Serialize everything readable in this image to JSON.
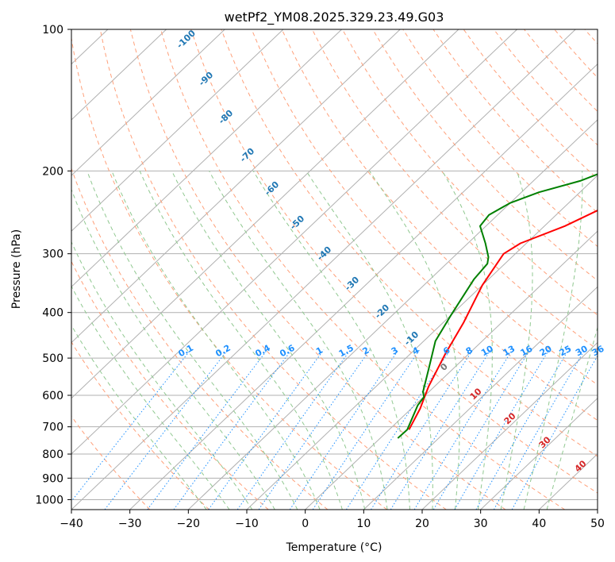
{
  "chart_data": {
    "type": "skew-t",
    "title": "wetPf2_YM08.2025.329.23.49.G03",
    "xlabel": "Temperature (°C)",
    "ylabel": "Pressure (hPa)",
    "xlim": [
      -40,
      50
    ],
    "ylim": [
      1050,
      100
    ],
    "x_ticks": [
      -40,
      -30,
      -20,
      -10,
      0,
      10,
      20,
      30,
      40,
      50
    ],
    "x_tick_labels": [
      "−40",
      "−30",
      "−20",
      "−10",
      "0",
      "10",
      "20",
      "30",
      "40",
      "50"
    ],
    "y_ticks": [
      100,
      200,
      300,
      400,
      500,
      600,
      700,
      800,
      900,
      1000
    ],
    "y_tick_labels": [
      "100",
      "200",
      "300",
      "400",
      "500",
      "600",
      "700",
      "800",
      "900",
      "1000"
    ],
    "colors": {
      "temperature": "#ff0000",
      "dewpoint": "#008000",
      "isotherm": "#b0b0b0",
      "dry_adiabat": "#ffa07a",
      "moist_adiabat": "#90c890",
      "mixing_ratio": "#1e90ff",
      "height_label": "#1f77b4",
      "surface_label": "#d62728",
      "zero_label": "#777777"
    },
    "series": [
      {
        "name": "Temperature",
        "points": [
          [
            3.4,
            710
          ],
          [
            1.5,
            640
          ],
          [
            -1,
            575
          ],
          [
            -4,
            490
          ],
          [
            -6.5,
            420
          ],
          [
            -10,
            350
          ],
          [
            -12,
            300
          ],
          [
            -11,
            285
          ],
          [
            -6.5,
            262
          ],
          [
            -3,
            238
          ],
          [
            -1,
            222
          ],
          [
            2.5,
            200
          ],
          [
            6,
            182
          ],
          [
            9,
            168
          ],
          [
            11,
            160
          ],
          [
            15,
            145
          ],
          [
            20,
            128
          ],
          [
            23.5,
            114
          ],
          [
            25,
            106
          ],
          [
            26.5,
            100
          ]
        ]
      },
      {
        "name": "Dewpoint",
        "points": [
          [
            3,
            740
          ],
          [
            3.1,
            710
          ],
          [
            2,
            675
          ],
          [
            0.5,
            630
          ],
          [
            0.1,
            605
          ],
          [
            -1,
            590
          ],
          [
            -4,
            530
          ],
          [
            -8,
            460
          ],
          [
            -10,
            405
          ],
          [
            -12.5,
            340
          ],
          [
            -13,
            315
          ],
          [
            -14,
            305
          ],
          [
            -17,
            285
          ],
          [
            -21,
            262
          ],
          [
            -21.5,
            248
          ],
          [
            -20,
            234
          ],
          [
            -17,
            222
          ],
          [
            -12,
            210
          ],
          [
            -8,
            195
          ],
          [
            -6,
            180
          ],
          [
            -5,
            165
          ],
          [
            -4,
            150
          ],
          [
            -3.5,
            138
          ],
          [
            -2.5,
            124
          ],
          [
            -1,
            114
          ],
          [
            1,
            106
          ],
          [
            1.5,
            100
          ]
        ]
      }
    ],
    "isotherm_labels": [
      "-100",
      "-90",
      "-80",
      "-70",
      "-60",
      "-50",
      "-40",
      "-30",
      "-20",
      "-10",
      "0",
      "10",
      "20",
      "30",
      "40"
    ],
    "mixing_ratio_labels": [
      "0.1",
      "0.2",
      "0.4",
      "0.6",
      "1",
      "1.5",
      "2",
      "3",
      "4",
      "6",
      "8",
      "10",
      "13",
      "16",
      "20",
      "25",
      "30",
      "36"
    ]
  }
}
